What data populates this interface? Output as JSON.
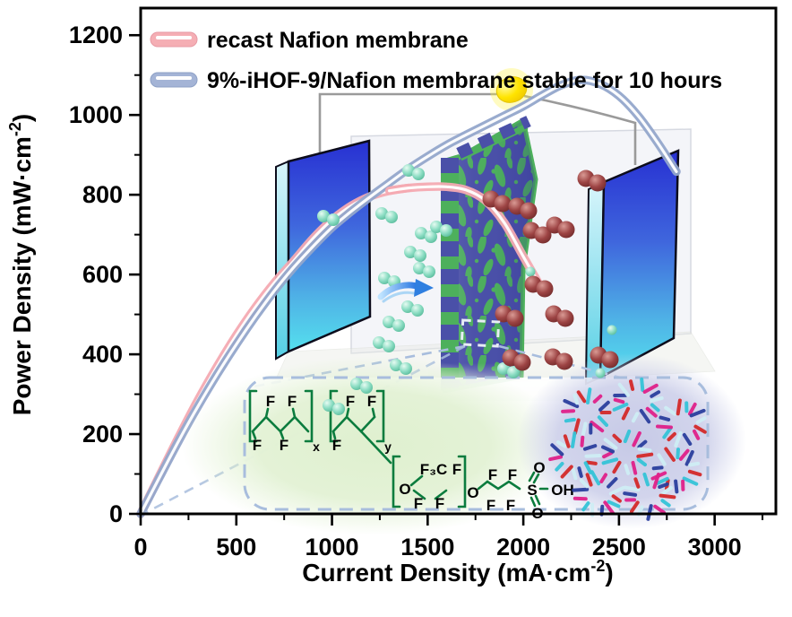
{
  "figure": {
    "kind": "fuel-cell performance figure with schematic illustration",
    "background": "#ffffff"
  },
  "chart_data": {
    "type": "line",
    "title": "",
    "xlabel": "Current Density (mA·cm⁻²)",
    "ylabel": "Power Density (mW·cm⁻²)",
    "xlabel_parts": {
      "base": "Current Density (mA·cm",
      "sup": "-2",
      "close": ")"
    },
    "ylabel_parts": {
      "base": "Power Density (mW·cm",
      "sup": "-2",
      "close": ")"
    },
    "xlim": [
      0,
      3320
    ],
    "ylim": [
      0,
      1268
    ],
    "xticks": [
      0,
      500,
      1000,
      1500,
      2000,
      2500,
      3000
    ],
    "yticks": [
      0,
      200,
      400,
      600,
      800,
      1000,
      1200
    ],
    "x_minor_step": 250,
    "y_minor_step": 100,
    "grid": false,
    "legend_position": "top-left",
    "series": [
      {
        "name": "recast Nafion membrane",
        "color": "#f4aab2",
        "core_color": "#ffffff",
        "x": [
          0,
          100,
          200,
          300,
          400,
          500,
          600,
          700,
          800,
          900,
          1000,
          1100,
          1200,
          1300,
          1400,
          1500,
          1600,
          1700,
          1800,
          1900,
          2000,
          2090
        ],
        "y": [
          0,
          98,
          194,
          286,
          370,
          448,
          518,
          580,
          634,
          690,
          737,
          772,
          796,
          810,
          817,
          820,
          820,
          812,
          786,
          730,
          645,
          570
        ]
      },
      {
        "name": "9%-iHOF-9/Nafion membrane stable for 10 hours",
        "color": "#93a7cb",
        "core_color": "#ffffff",
        "x": [
          0,
          100,
          200,
          300,
          400,
          500,
          600,
          700,
          800,
          900,
          1000,
          1100,
          1200,
          1300,
          1400,
          1500,
          1600,
          1700,
          1800,
          1900,
          2000,
          2100,
          2200,
          2300,
          2400,
          2500,
          2600,
          2700,
          2800
        ],
        "y": [
          0,
          93,
          184,
          270,
          350,
          425,
          495,
          560,
          618,
          670,
          718,
          758,
          795,
          830,
          865,
          896,
          925,
          950,
          974,
          998,
          1022,
          1050,
          1075,
          1088,
          1078,
          1048,
          998,
          932,
          858
        ]
      }
    ]
  },
  "legend": {
    "items": [
      {
        "label": "recast Nafion membrane",
        "color": "#f5aeb4"
      },
      {
        "label": "9%-iHOF-9/Nafion membrane stable for 10 hours",
        "color": "#a4b4d6"
      }
    ]
  },
  "illustration": {
    "bulb_color": "#ffe400",
    "wire_color": "#9a9a9a",
    "electrode_top_color": "#2730d2",
    "electrode_bottom_color": "#55e0ee",
    "membrane_green": "#4db05c",
    "membrane_indigo": "#4a50a8",
    "hydrogen_color": "#85d8bc",
    "oxygen_color": "#9d4343",
    "flow_arrow_color": "#2f7fe0",
    "zoom_dash_color": "#a8bddd"
  },
  "inset": {
    "green_bg": "#dff0cf",
    "purple_bg": "#cdd0ea",
    "border_color": "#a8bddd",
    "structure_color": "#0b7c3e",
    "oh_color": "#7d9c90",
    "nafion_labels": [
      "F",
      "F",
      "F",
      "F",
      "x",
      "F",
      "F",
      "F",
      "y",
      "O",
      "F₃C",
      "F",
      "F",
      "F",
      "O",
      "F",
      "F",
      "F",
      "F",
      "S",
      "O",
      "O",
      "OH"
    ],
    "crystal_colors": [
      "#d42a2a",
      "#35c4d8",
      "#e0218a",
      "#2b3f9e",
      "#cfeef5"
    ]
  }
}
